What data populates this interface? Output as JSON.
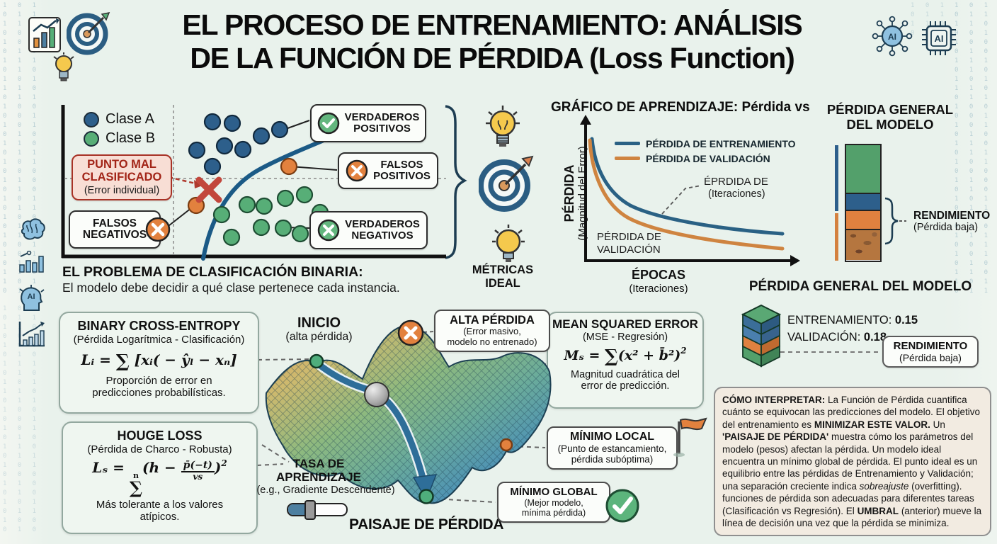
{
  "page": {
    "title_line1": "EL PROCESO DE ENTRENAMIENTO: ANÁLISIS",
    "title_line2": "DE LA FUNCIÓN DE PÉRDIDA (Loss Function)"
  },
  "icons": {
    "ai": "AI"
  },
  "bg": {
    "digits": "1 0 1\n0 1 1\n1 1 0\n0 0 1\n1 0 0\n0 1 0\n1 1 1\n0 1 0\n1 0 1\n1 1 0\n0 1 1\n1 0 0\n0 0 1\n1 0 1\n0 1 0\n1 1 0\n0 1 1\n1 0 1\n0 0 0\n1 1 0\n0 1 0\n1 0 1\n0 1 1\n1 0 0\n0 1 0\n1 1 1\n0 0 1\n1 0 1\n0 1 0\n1 1 0\n1 0 1\n0 1 1"
  },
  "scatter": {
    "legend": [
      {
        "label": "Clase A",
        "color": "#2d5f8b"
      },
      {
        "label": "Clase B",
        "color": "#57ae77"
      }
    ],
    "punto_mal_line1": "PUNTO MAL",
    "punto_mal_line2": "CLASIFICADO",
    "punto_mal_sub": "(Error individual)",
    "falsos_negativos_line1": "FALSOS",
    "falsos_negativos_line2": "NEGATIVOS",
    "verdaderos_positivos_line1": "VERDADEROS",
    "verdaderos_positivos_line2": "POSITIVOS",
    "falsos_positivos_line1": "FALSOS",
    "falsos_positivos_line2": "POSITIVOS",
    "verdaderos_negativos_line1": "VERDADEROS",
    "verdaderos_negativos_line2": "NEGATIVOS",
    "caption_title": "EL PROBLEMA DE CLASIFICACIÓN BINARIA:",
    "caption_text": "El modelo debe decidir a qué clase pertenece cada instancia."
  },
  "metrics": {
    "line1": "MÉTRICAS",
    "line2": "IDEAL"
  },
  "learning_chart": {
    "title": "GRÁFICO DE APRENDIZAJE: Pérdida vs",
    "legend_train": "PÉRDIDA DE ENTRENAMIENTO",
    "legend_val": "PÉRDIDA DE VALIDACIÓN",
    "ylabel_bold": "PÉRDIDA",
    "ylabel_sub": "(Magnitud del Error)",
    "annotation_line1": "ÉPRDIDA DE",
    "annotation_line2": "(Iteraciones)",
    "inplot_line1": "PÉRDIDA DE",
    "inplot_line2": "VALIDACIÓN",
    "xlabel_bold": "ÉPOCAS",
    "xlabel_sub": "(Iteraciones)"
  },
  "loss_bar": {
    "title_line1": "PÉRDIDA GENERAL",
    "title_line2": "DEL MODELO",
    "label_bold": "RENDIMIENTO",
    "label_sub": "(Pérdida baja)"
  },
  "model_loss": {
    "title": "PÉRDIDA GENERAL DEL MODELO",
    "train_label": "ENTRENAMIENTO: ",
    "train_value": "0.15",
    "val_label": "VALIDACIÓN: ",
    "val_value": "0.18",
    "box_bold": "RENDIMIENTO",
    "box_sub": "(Pérdida baja)"
  },
  "formulas": {
    "bce": {
      "title": "BINARY CROSS-ENTROPY",
      "subtitle": "(Pérdida Logarítmica - Clasificación)",
      "lhs": "Lᵢ = ",
      "sum": "∑",
      "body": " [xᵢ( − ŷₗ − xₙ]",
      "desc_line1": "Proporción de error en",
      "desc_line2": "predicciones probabilísticas."
    },
    "houge": {
      "title": "HOUGE LOSS",
      "subtitle": "(Pérdida de Charco - Robusta)",
      "lhs": "Lₛ = ",
      "sum": "∑",
      "sum_sup": "n",
      "open": "(h − ",
      "num": "p̄(−t)",
      "den": "vs",
      "close": ")",
      "exp": "2",
      "desc_line1": "Más tolerante a los valores",
      "desc_line2": "atípicos."
    },
    "mse": {
      "title": "MEAN SQUARED ERROR",
      "subtitle": "(MSE - Regresión)",
      "lhs": "Mₛ = ",
      "sum": "∑",
      "body": "(x² + b̄²)",
      "exp": "2",
      "desc_line1": "Magnitud cuadrática del",
      "desc_line2": "error de predicción."
    }
  },
  "landscape": {
    "inicio_bold": "INICIO",
    "inicio_sub": "(alta pérdida)",
    "alta_title": "ALTA PÉRDIDA",
    "alta_sub1": "(Error masivo,",
    "alta_sub2": "modelo no entrenado)",
    "tasa_line1": "TASA DE",
    "tasa_line2": "APRENDIZAJE",
    "tasa_sub": "(e.g., Gradiente Descendente)",
    "paisaje": "PAISAJE DE PÉRDIDA",
    "local_title": "MÍNIMO LOCAL",
    "local_sub1": "(Punto de estancamiento,",
    "local_sub2": "pérdida subóptima)",
    "global_title": "MÍNIMO GLOBAL",
    "global_sub1": "(Mejor modelo,",
    "global_sub2": "mínima pérdida)"
  },
  "interpret": {
    "segments": [
      {
        "style": "b",
        "text": "CÓMO INTERPRETAR: "
      },
      {
        "style": "n",
        "text": "La Función de Pérdida cuantifica cuánto se equivocan las predicciones del modelo. El objetivo del entrenamiento es "
      },
      {
        "style": "b",
        "text": "MINIMIZAR ESTE VALOR."
      },
      {
        "style": "n",
        "text": " Un "
      },
      {
        "style": "b",
        "text": "'PAISAJE DE PÉRDIDA'"
      },
      {
        "style": "n",
        "text": " muestra cómo los parámetros del modelo (pesos) afectan la pérdida. Un modelo ideal encuentra un mínimo global de pérdida. El punto ideal es un equilibrio entre las pérdidas de Entrenamiento y Validación; una separación creciente indica "
      },
      {
        "style": "i",
        "text": "sobreajuste"
      },
      {
        "style": "n",
        "text": " (overfitting). funciones de pérdida son adecuadas para diferentes tareas (Clasificación vs Regresión). El "
      },
      {
        "style": "b",
        "text": "UMBRAL"
      },
      {
        "style": "n",
        "text": " (anterior) mueve la línea de decisión una vez que la pérdida se minimiza."
      }
    ]
  }
}
